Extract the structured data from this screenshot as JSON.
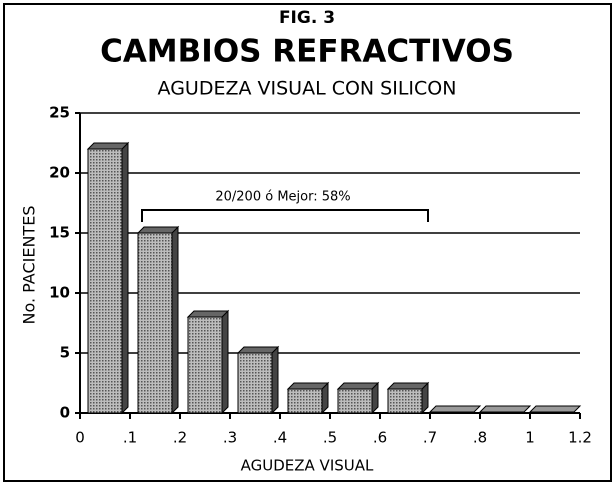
{
  "chart_data": {
    "type": "histogram",
    "title": "FIG. 3",
    "subtitle": "CAMBIOS REFRACTIVOS",
    "subtitle2": "AGUDEZA VISUAL CON SILICON",
    "xlabel": "AGUDEZA VISUAL",
    "ylabel": "No. PACIENTES",
    "bins": [
      {
        "value": 0,
        "label": "0"
      },
      {
        "value": 0.1,
        "label": ".1"
      },
      {
        "value": 0.2,
        "label": ".2"
      },
      {
        "value": 0.3,
        "label": ".3"
      },
      {
        "value": 0.4,
        "label": ".4"
      },
      {
        "value": 0.5,
        "label": ".5"
      },
      {
        "value": 0.6,
        "label": ".6"
      },
      {
        "value": 0.7,
        "label": ".7"
      },
      {
        "value": 0.8,
        "label": ".8"
      },
      {
        "value": 1,
        "label": "1"
      },
      {
        "value": 1.2,
        "label": "1.2"
      }
    ],
    "values": [
      22,
      15,
      8,
      5,
      2,
      2,
      2,
      0,
      0,
      0
    ],
    "color": "#9a9a9a",
    "ylim": [
      0,
      25
    ],
    "yticks": [
      0,
      5,
      10,
      15,
      20,
      25
    ],
    "grid": true,
    "annotation": "20/200 ó Mejor: 58%"
  }
}
